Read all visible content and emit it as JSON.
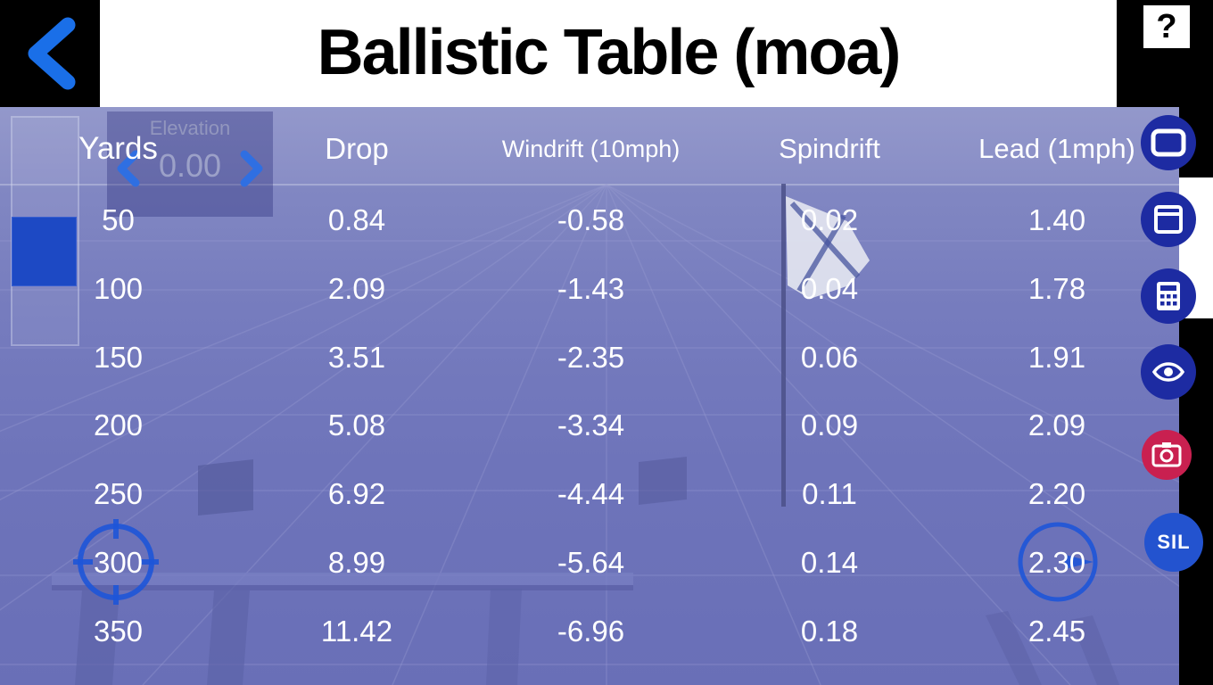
{
  "header": {
    "title": "Ballistic Table (moa)",
    "help_label": "?",
    "back_icon": "chevron-left-icon"
  },
  "elevation": {
    "label": "Elevation",
    "value": "0.00",
    "dec_icon": "chevron-left-icon",
    "inc_icon": "chevron-right-icon"
  },
  "table": {
    "columns": [
      "Yards",
      "Drop",
      "Windrift (10mph)",
      "Spindrift",
      "Lead (1mph)"
    ],
    "rows": [
      [
        "50",
        "0.84",
        "-0.58",
        "0.02",
        "1.40"
      ],
      [
        "100",
        "2.09",
        "-1.43",
        "0.04",
        "1.78"
      ],
      [
        "150",
        "3.51",
        "-2.35",
        "0.06",
        "1.91"
      ],
      [
        "200",
        "5.08",
        "-3.34",
        "0.09",
        "2.09"
      ],
      [
        "250",
        "6.92",
        "-4.44",
        "0.11",
        "2.20"
      ],
      [
        "300",
        "8.99",
        "-5.64",
        "0.14",
        "2.30"
      ],
      [
        "350",
        "11.42",
        "-6.96",
        "0.18",
        "2.45"
      ]
    ]
  },
  "right_toolbar": {
    "icons": [
      "display-icon",
      "window-icon",
      "calculator-icon",
      "eye-icon",
      "camera-icon"
    ],
    "sil_label": "SIL"
  },
  "scene_elements": [
    "flag",
    "flag-pole",
    "shooting-bench",
    "floor-grid",
    "scope-reticle",
    "wind-compass"
  ],
  "colors": {
    "accent_blue": "#1a6fe8",
    "icon_navy": "#1d2ba2",
    "camera_red": "#c92050",
    "sil_blue": "#2353cf",
    "overlay_purple": "#6e74ba",
    "table_text": "#ffffff",
    "swatch_blue": "#1d49c4"
  }
}
